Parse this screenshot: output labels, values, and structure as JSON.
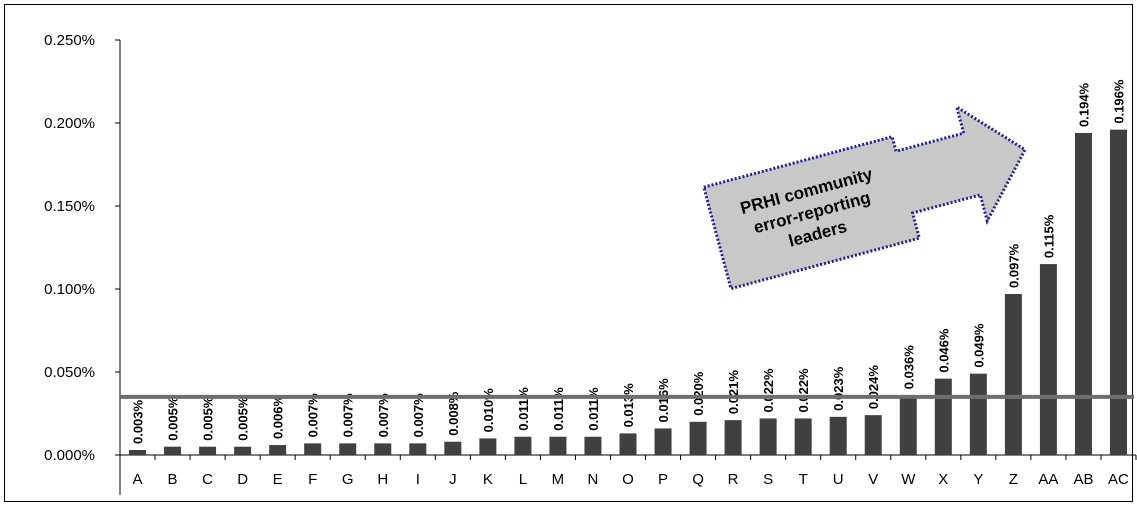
{
  "chart_data": {
    "type": "bar",
    "title": "",
    "xlabel": "",
    "ylabel": "",
    "ylim": [
      0,
      0.25
    ],
    "yticks": [
      "0.000%",
      "0.050%",
      "0.100%",
      "0.150%",
      "0.200%",
      "0.250%"
    ],
    "ytick_values": [
      0,
      0.05,
      0.1,
      0.15,
      0.2,
      0.25
    ],
    "categories": [
      "A",
      "B",
      "C",
      "D",
      "E",
      "F",
      "G",
      "H",
      "I",
      "J",
      "K",
      "L",
      "M",
      "N",
      "O",
      "P",
      "Q",
      "R",
      "S",
      "T",
      "U",
      "V",
      "W",
      "X",
      "Y",
      "Z",
      "AA",
      "AB",
      "AC"
    ],
    "values": [
      0.003,
      0.005,
      0.005,
      0.005,
      0.006,
      0.007,
      0.007,
      0.007,
      0.007,
      0.008,
      0.01,
      0.011,
      0.011,
      0.011,
      0.013,
      0.016,
      0.02,
      0.021,
      0.022,
      0.022,
      0.023,
      0.024,
      0.036,
      0.046,
      0.049,
      0.097,
      0.115,
      0.194,
      0.196
    ],
    "data_labels": [
      "0.003%",
      "0.005%",
      "0.005%",
      "0.005%",
      "0.006%",
      "0.007%",
      "0.007%",
      "0.007%",
      "0.007%",
      "0.008%",
      "0.010%",
      "0.011%",
      "0.011%",
      "0.011%",
      "0.013%",
      "0.016%",
      "0.020%",
      "0.021%",
      "0.022%",
      "0.022%",
      "0.023%",
      "0.024%",
      "0.036%",
      "0.046%",
      "0.049%",
      "0.097%",
      "0.115%",
      "0.194%",
      "0.196%"
    ],
    "reference_line": 0.035,
    "bar_color": "#404040",
    "reference_line_color": "#6e6e6e",
    "grid": false,
    "annotation": {
      "lines": [
        "PRHI community",
        "error-reporting",
        "leaders"
      ],
      "fill": "#c8c8c8",
      "border": "#1f1f8f"
    }
  }
}
